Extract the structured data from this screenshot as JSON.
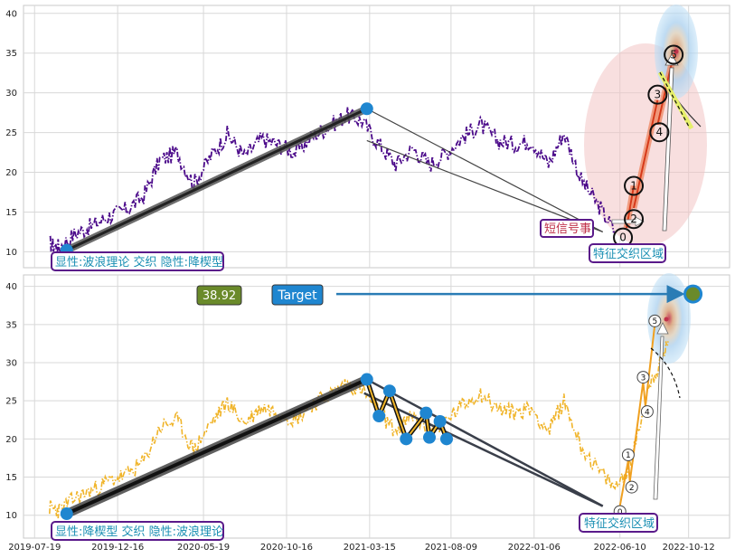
{
  "chart_data": [
    {
      "type": "line",
      "panel": "top",
      "ylim": [
        8,
        41
      ],
      "yticks": [
        10,
        15,
        20,
        25,
        30,
        35,
        40
      ],
      "grid": true,
      "series_color": "#4b0a8a",
      "series_style": "dash-dot",
      "price_series": [
        [
          "2019-08-15",
          11.0
        ],
        [
          "2019-09-01",
          10.6
        ],
        [
          "2019-10-01",
          12.3
        ],
        [
          "2019-11-01",
          13.3
        ],
        [
          "2019-12-01",
          14.5
        ],
        [
          "2020-01-01",
          15.3
        ],
        [
          "2020-02-01",
          17.0
        ],
        [
          "2020-03-01",
          21.5
        ],
        [
          "2020-04-01",
          22.5
        ],
        [
          "2020-05-01",
          18.5
        ],
        [
          "2020-06-01",
          22.0
        ],
        [
          "2020-07-01",
          24.8
        ],
        [
          "2020-08-01",
          22.0
        ],
        [
          "2020-09-01",
          24.2
        ],
        [
          "2020-10-01",
          23.5
        ],
        [
          "2020-11-01",
          22.5
        ],
        [
          "2020-12-01",
          24.5
        ],
        [
          "2021-01-01",
          25.8
        ],
        [
          "2021-02-01",
          27.2
        ],
        [
          "2021-03-01",
          26.5
        ],
        [
          "2021-04-01",
          23.5
        ],
        [
          "2021-05-01",
          21.0
        ],
        [
          "2021-06-01",
          23.0
        ],
        [
          "2021-07-01",
          21.0
        ],
        [
          "2021-08-01",
          22.5
        ],
        [
          "2021-09-01",
          24.5
        ],
        [
          "2021-10-01",
          26.0
        ],
        [
          "2021-11-01",
          24.0
        ],
        [
          "2021-12-01",
          23.5
        ],
        [
          "2022-01-01",
          24.0
        ],
        [
          "2022-02-01",
          21.0
        ],
        [
          "2022-03-01",
          25.0
        ],
        [
          "2022-04-01",
          19.0
        ],
        [
          "2022-05-01",
          16.0
        ],
        [
          "2022-06-01",
          12.5
        ]
      ],
      "major_trend_line": [
        [
          "2019-09-15",
          10.2
        ],
        [
          "2021-03-10",
          28.0
        ]
      ],
      "projection_lines": [
        [
          [
            "2021-03-10",
            28.0
          ],
          [
            "2022-05-10",
            12.5
          ]
        ],
        [
          [
            "2021-03-10",
            24.0
          ],
          [
            "2022-05-10",
            12.5
          ]
        ]
      ],
      "wave_points": [
        {
          "label": "0",
          "date": "2022-06-22",
          "value": 11.8
        },
        {
          "label": "1",
          "date": "2022-07-05",
          "value": 18.3
        },
        {
          "label": "2",
          "date": "2022-07-05",
          "value": 14.8
        },
        {
          "label": "3",
          "date": "2022-08-17",
          "value": 29.1
        },
        {
          "label": "4",
          "date": "2022-08-17",
          "value": 25.5
        },
        {
          "label": "5",
          "date": "2022-09-15",
          "value": 34.8
        }
      ],
      "impulse_segments": [
        [
          [
            "2022-06-22",
            13.0
          ],
          [
            "2022-07-05",
            18.3
          ]
        ],
        [
          [
            "2022-07-05",
            15.5
          ],
          [
            "2022-08-17",
            29.1
          ]
        ],
        [
          [
            "2022-08-17",
            26.0
          ],
          [
            "2022-09-15",
            34.8
          ]
        ]
      ],
      "labels": {
        "box_left": "显性:波浪理论 交织 隐性:降楔型",
        "box_right": "特征交织区域",
        "signal_box": "短信号事"
      }
    },
    {
      "type": "line",
      "panel": "bottom",
      "ylim": [
        7,
        41.5
      ],
      "yticks": [
        10,
        15,
        20,
        25,
        30,
        35,
        40
      ],
      "xticks": [
        "2019-07-19",
        "2019-12-16",
        "2020-05-19",
        "2020-10-16",
        "2021-03-15",
        "2021-08-09",
        "2022-01-06",
        "2022-06-10",
        "2022-10-12"
      ],
      "grid": true,
      "series_color": "#f0b429",
      "series_style": "dash-dot",
      "price_series": [
        [
          "2019-08-15",
          11.0
        ],
        [
          "2019-09-01",
          10.6
        ],
        [
          "2019-10-01",
          12.3
        ],
        [
          "2019-11-01",
          13.3
        ],
        [
          "2019-12-01",
          14.5
        ],
        [
          "2020-01-01",
          15.3
        ],
        [
          "2020-02-01",
          17.0
        ],
        [
          "2020-03-01",
          21.5
        ],
        [
          "2020-04-01",
          22.5
        ],
        [
          "2020-05-01",
          18.5
        ],
        [
          "2020-06-01",
          22.0
        ],
        [
          "2020-07-01",
          24.8
        ],
        [
          "2020-08-01",
          22.0
        ],
        [
          "2020-09-01",
          24.2
        ],
        [
          "2020-10-01",
          23.5
        ],
        [
          "2020-11-01",
          22.5
        ],
        [
          "2020-12-01",
          24.5
        ],
        [
          "2021-01-01",
          25.8
        ],
        [
          "2021-02-01",
          27.2
        ],
        [
          "2021-03-01",
          26.5
        ],
        [
          "2021-04-01",
          23.5
        ],
        [
          "2021-05-01",
          21.0
        ],
        [
          "2021-06-01",
          23.0
        ],
        [
          "2021-07-01",
          21.0
        ],
        [
          "2021-08-01",
          22.5
        ],
        [
          "2021-09-01",
          24.5
        ],
        [
          "2021-10-01",
          26.0
        ],
        [
          "2021-11-01",
          24.0
        ],
        [
          "2021-12-01",
          23.5
        ],
        [
          "2022-01-01",
          24.0
        ],
        [
          "2022-02-01",
          21.0
        ],
        [
          "2022-03-01",
          25.0
        ],
        [
          "2022-04-01",
          19.0
        ],
        [
          "2022-05-01",
          16.0
        ],
        [
          "2022-06-01",
          13.5
        ],
        [
          "2022-07-01",
          17.0
        ],
        [
          "2022-08-01",
          27.0
        ],
        [
          "2022-08-20",
          29.5
        ],
        [
          "2022-09-05",
          32.8
        ]
      ],
      "major_trend_line": [
        [
          "2019-09-15",
          10.2
        ],
        [
          "2021-03-10",
          27.8
        ]
      ],
      "wedge_lines": [
        [
          [
            "2021-03-10",
            27.8
          ],
          [
            "2022-05-10",
            11.2
          ]
        ],
        [
          [
            "2021-03-05",
            26.0
          ],
          [
            "2022-05-10",
            11.2
          ]
        ]
      ],
      "zigzag_points": [
        [
          "2021-03-10",
          27.8
        ],
        [
          "2021-04-01",
          23.0
        ],
        [
          "2021-04-20",
          26.3
        ],
        [
          "2021-05-20",
          20.0
        ],
        [
          "2021-06-25",
          23.4
        ],
        [
          "2021-07-01",
          20.2
        ],
        [
          "2021-07-20",
          22.3
        ],
        [
          "2021-08-01",
          20.0
        ]
      ],
      "wave_points": [
        {
          "label": "0",
          "date": "2022-06-10",
          "value": 11.2
        },
        {
          "label": "1",
          "date": "2022-06-25",
          "value": 17.2
        },
        {
          "label": "2",
          "date": "2022-06-28",
          "value": 14.4
        },
        {
          "label": "3",
          "date": "2022-07-22",
          "value": 27.5
        },
        {
          "label": "4",
          "date": "2022-07-26",
          "value": 24.3
        },
        {
          "label": "5",
          "date": "2022-08-12",
          "value": 35.0
        }
      ],
      "target_point": {
        "date": "2022-10-20",
        "value": 39.0
      },
      "current_value": "38.92",
      "target_label": "Target",
      "labels": {
        "box_left": "显性:降楔型 交织 隐性:波浪理论",
        "box_right": "特征交织区域"
      }
    }
  ]
}
